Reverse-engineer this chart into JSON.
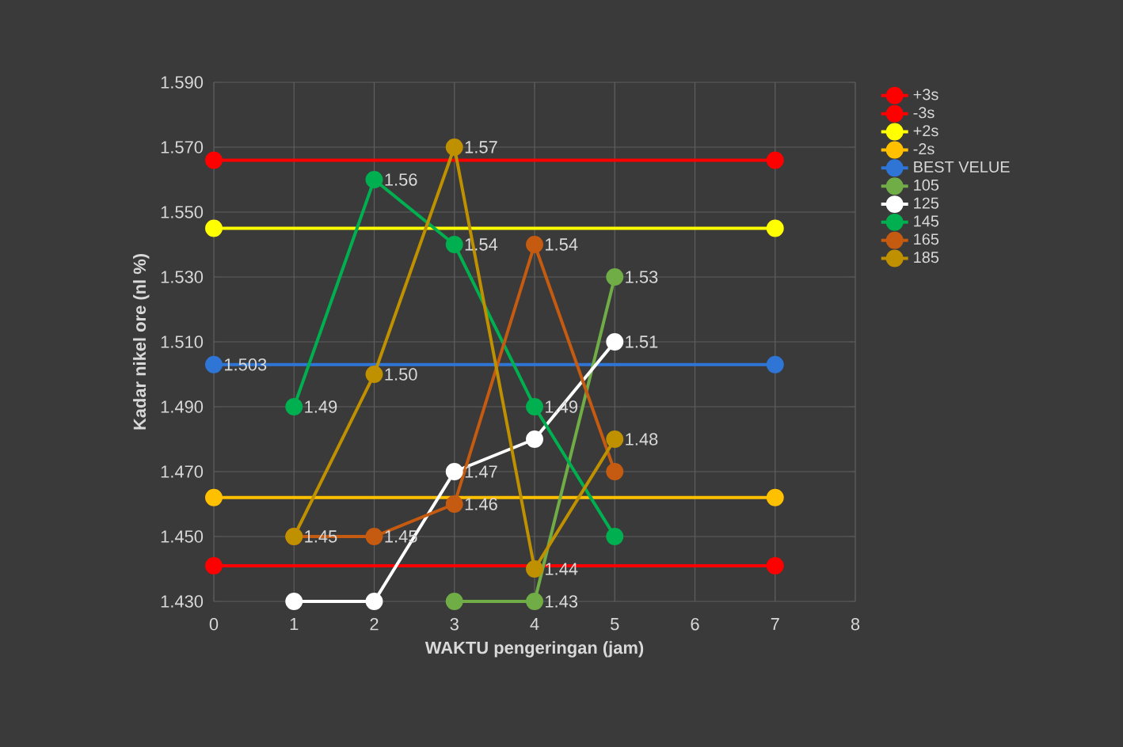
{
  "chart_data": {
    "type": "line",
    "xlabel": "WAKTU pengeringan  (jam)",
    "ylabel": "Kadar nikel ore (nl %)",
    "xlim": [
      0,
      8
    ],
    "xticks": [
      0,
      1,
      2,
      3,
      4,
      5,
      6,
      7,
      8
    ],
    "ylim": [
      1.43,
      1.59
    ],
    "yticks": [
      {
        "value": 1.43,
        "label": "1.430"
      },
      {
        "value": 1.45,
        "label": "1.450"
      },
      {
        "value": 1.47,
        "label": "1.470"
      },
      {
        "value": 1.49,
        "label": "1.490"
      },
      {
        "value": 1.51,
        "label": "1.510"
      },
      {
        "value": 1.53,
        "label": "1.530"
      },
      {
        "value": 1.55,
        "label": "1.550"
      },
      {
        "value": 1.57,
        "label": "1.570"
      },
      {
        "value": 1.59,
        "label": "1.590"
      }
    ],
    "grid": true,
    "legend": "right",
    "marker": "circle",
    "line_style": "solid",
    "series": [
      {
        "name": "+3s",
        "color": "#ff0000",
        "x": [
          0,
          7
        ],
        "values": [
          1.566,
          1.566
        ]
      },
      {
        "name": "-3s",
        "color": "#ff0000",
        "x": [
          0,
          7
        ],
        "values": [
          1.441,
          1.441
        ]
      },
      {
        "name": "+2s",
        "color": "#ffff00",
        "x": [
          0,
          7
        ],
        "values": [
          1.545,
          1.545
        ]
      },
      {
        "name": "-2s",
        "color": "#ffc000",
        "x": [
          0,
          7
        ],
        "values": [
          1.462,
          1.462
        ]
      },
      {
        "name": "BEST VELUE",
        "color": "#2f75d6",
        "x": [
          0,
          7
        ],
        "values": [
          1.503,
          1.503
        ],
        "value_labels": [
          "1.503",
          null
        ]
      },
      {
        "name": "105",
        "color": "#70ad47",
        "x": [
          3,
          4,
          5
        ],
        "values": [
          1.43,
          1.43,
          1.53
        ],
        "value_labels": [
          null,
          "1.43",
          "1.53"
        ]
      },
      {
        "name": "125",
        "color": "#ffffff",
        "x": [
          1,
          2,
          3,
          4,
          5
        ],
        "values": [
          1.43,
          1.43,
          1.47,
          1.48,
          1.51
        ],
        "value_labels": [
          null,
          null,
          "1.47",
          null,
          "1.51"
        ]
      },
      {
        "name": "145",
        "color": "#00b050",
        "x": [
          1,
          2,
          3,
          4,
          5
        ],
        "values": [
          1.49,
          1.56,
          1.54,
          1.49,
          1.45
        ],
        "value_labels": [
          "1.49",
          "1.56",
          "1.54",
          "1.49",
          null
        ]
      },
      {
        "name": "165",
        "color": "#c55a11",
        "x": [
          1,
          2,
          3,
          4,
          5
        ],
        "values": [
          1.45,
          1.45,
          1.46,
          1.54,
          1.47
        ],
        "value_labels": [
          "1.45",
          "1.45",
          "1.46",
          "1.54",
          null
        ]
      },
      {
        "name": "185",
        "color": "#bf9000",
        "x": [
          1,
          2,
          3,
          4,
          5
        ],
        "values": [
          1.45,
          1.5,
          1.57,
          1.44,
          1.48
        ],
        "value_labels": [
          null,
          "1.50",
          "1.57",
          "1.44",
          "1.48"
        ]
      }
    ]
  }
}
